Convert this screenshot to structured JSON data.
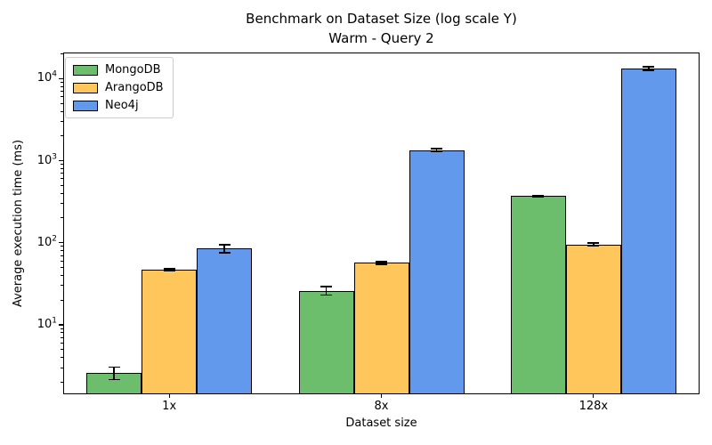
{
  "chart_data": {
    "type": "bar",
    "title_lines": [
      "Benchmark on Dataset Size (log scale Y)",
      "Warm - Query 2"
    ],
    "title": "Benchmark on Dataset Size (log scale Y)\nWarm - Query 2",
    "xlabel": "Dataset size",
    "ylabel": "Average execution time (ms)",
    "categories": [
      "1x",
      "8x",
      "128x"
    ],
    "series": [
      {
        "name": "MongoDB",
        "color": "#6cbd6c",
        "values": [
          2.6,
          26,
          370
        ],
        "errors": [
          0.45,
          3,
          8
        ]
      },
      {
        "name": "ArangoDB",
        "color": "#ffc65c",
        "values": [
          47,
          57,
          95
        ],
        "errors": [
          1.5,
          2,
          4
        ]
      },
      {
        "name": "Neo4j",
        "color": "#6399ec",
        "values": [
          85,
          1350,
          13200
        ],
        "errors": [
          10,
          60,
          700
        ]
      }
    ],
    "yscale": "log",
    "ylim": [
      1.46,
      20800
    ],
    "y_tick_exponents": [
      1,
      2,
      3,
      4
    ],
    "bar_edge_color": "#000000",
    "error_color": "#000000",
    "legend_position": "upper left",
    "grid": false
  }
}
